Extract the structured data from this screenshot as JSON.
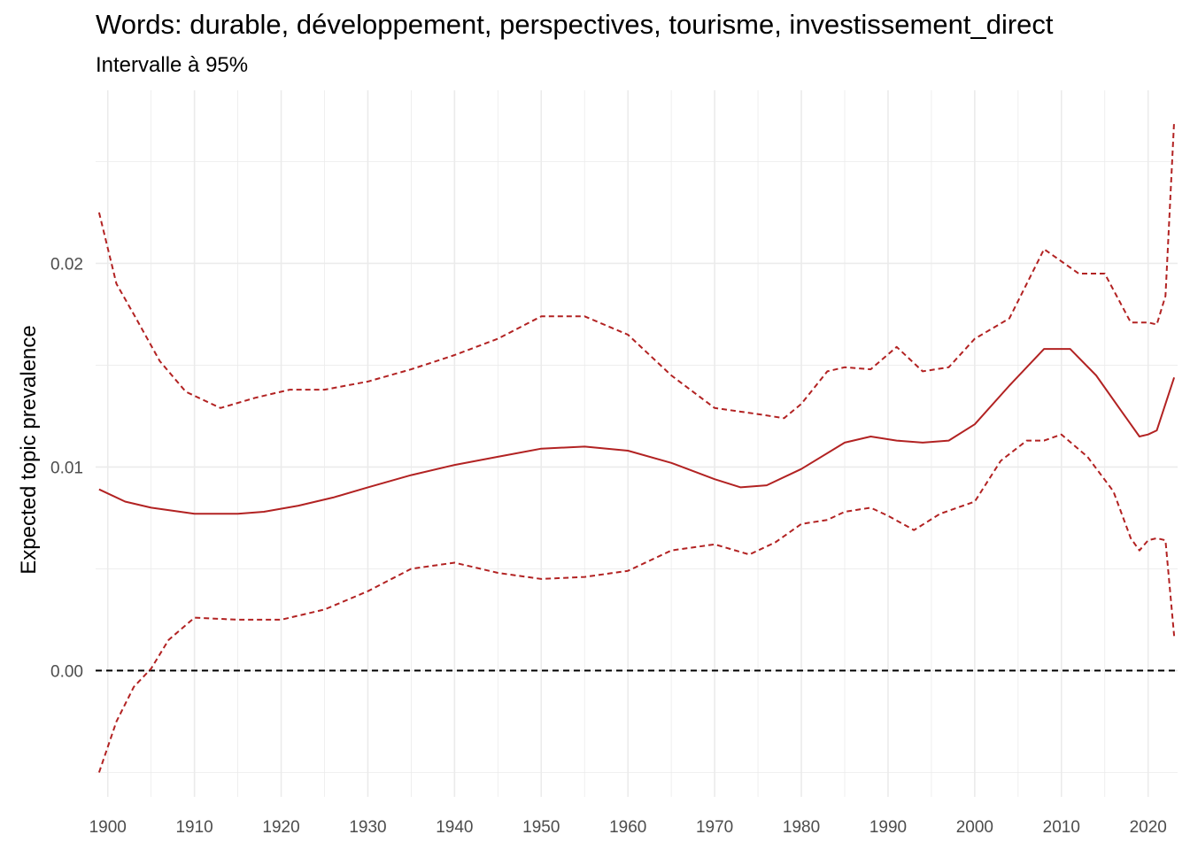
{
  "chart_data": {
    "type": "line",
    "title": "Words: durable, développement, perspectives, tourisme, investissement_direct",
    "subtitle": "Intervalle à 95%",
    "xlabel": "",
    "ylabel": "Expected topic prevalence",
    "xlim": [
      1898.6,
      2023.4
    ],
    "ylim": [
      -0.0062,
      0.0285
    ],
    "x_ticks": [
      1900,
      1910,
      1920,
      1930,
      1940,
      1950,
      1960,
      1970,
      1980,
      1990,
      2000,
      2010,
      2020
    ],
    "y_ticks": [
      0.0,
      0.01,
      0.02
    ],
    "y_tick_labels": [
      "0.00",
      "0.01",
      "0.02"
    ],
    "grid": true,
    "reference_line": {
      "y": 0,
      "style": "dashed",
      "color": "#000000"
    },
    "colors": {
      "estimate": "#b22222",
      "interval": "#b22222",
      "grid": "#ebebeb"
    },
    "series": [
      {
        "role": "estimate",
        "style": "solid",
        "x": [
          1899,
          1902,
          1905,
          1910,
          1915,
          1918,
          1922,
          1926,
          1930,
          1935,
          1940,
          1945,
          1950,
          1955,
          1960,
          1965,
          1970,
          1973,
          1976,
          1980,
          1985,
          1988,
          1991,
          1994,
          1997,
          2000,
          2004,
          2008,
          2011,
          2014,
          2017,
          2019,
          2020,
          2021,
          2023
        ],
        "y": [
          0.0089,
          0.0083,
          0.008,
          0.0077,
          0.0077,
          0.0078,
          0.0081,
          0.0085,
          0.009,
          0.0096,
          0.0101,
          0.0105,
          0.0109,
          0.011,
          0.0108,
          0.0102,
          0.0094,
          0.009,
          0.0091,
          0.0099,
          0.0112,
          0.0115,
          0.0113,
          0.0112,
          0.0113,
          0.0121,
          0.014,
          0.0158,
          0.0158,
          0.0145,
          0.0127,
          0.0115,
          0.0116,
          0.0118,
          0.0144
        ]
      },
      {
        "role": "upper",
        "style": "dashed",
        "x": [
          1899,
          1901,
          1903,
          1906,
          1909,
          1913,
          1917,
          1921,
          1925,
          1930,
          1935,
          1940,
          1945,
          1950,
          1955,
          1960,
          1965,
          1970,
          1975,
          1978,
          1980,
          1983,
          1985,
          1988,
          1991,
          1994,
          1997,
          2000,
          2004,
          2008,
          2012,
          2015,
          2018,
          2020,
          2021,
          2022,
          2023
        ],
        "y": [
          0.0225,
          0.019,
          0.0175,
          0.0152,
          0.0137,
          0.0129,
          0.0134,
          0.0138,
          0.0138,
          0.0142,
          0.0148,
          0.0155,
          0.0163,
          0.0174,
          0.0174,
          0.0165,
          0.0145,
          0.0129,
          0.0126,
          0.0124,
          0.0131,
          0.0147,
          0.0149,
          0.0148,
          0.0159,
          0.0147,
          0.0149,
          0.0163,
          0.0173,
          0.0207,
          0.0195,
          0.0195,
          0.0171,
          0.0171,
          0.017,
          0.0184,
          0.027
        ]
      },
      {
        "role": "lower",
        "style": "dashed",
        "x": [
          1899,
          1901,
          1903,
          1905,
          1907,
          1910,
          1915,
          1920,
          1925,
          1930,
          1935,
          1940,
          1945,
          1950,
          1955,
          1960,
          1965,
          1970,
          1974,
          1977,
          1980,
          1983,
          1985,
          1988,
          1990,
          1993,
          1996,
          2000,
          2003,
          2006,
          2008,
          2010,
          2013,
          2016,
          2018,
          2019,
          2020,
          2021,
          2022,
          2023
        ],
        "y": [
          -0.005,
          -0.0025,
          -0.0008,
          0.0001,
          0.0015,
          0.0026,
          0.0025,
          0.0025,
          0.003,
          0.0039,
          0.005,
          0.0053,
          0.0048,
          0.0045,
          0.0046,
          0.0049,
          0.0059,
          0.0062,
          0.0057,
          0.0063,
          0.0072,
          0.0074,
          0.0078,
          0.008,
          0.0076,
          0.0069,
          0.0077,
          0.0083,
          0.0103,
          0.0113,
          0.0113,
          0.0116,
          0.0105,
          0.0088,
          0.0065,
          0.0059,
          0.0064,
          0.0065,
          0.0064,
          0.0017
        ]
      }
    ]
  }
}
